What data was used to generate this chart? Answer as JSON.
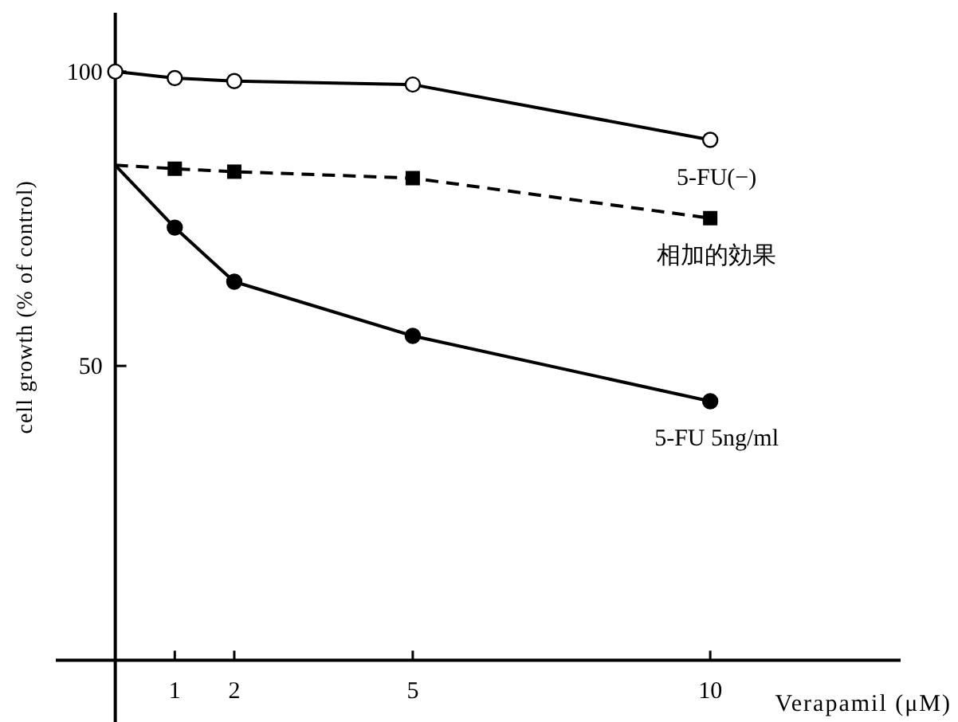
{
  "chart_data": {
    "type": "line",
    "xlabel": "Verapamil (μM)",
    "ylabel": "cell growth (% of control)",
    "xlim": [
      -1,
      13.2
    ],
    "ylim": [
      -10.5,
      110
    ],
    "xticks": [
      1,
      2,
      5,
      10
    ],
    "yticks": [
      50,
      100
    ],
    "grid": false,
    "legend": false,
    "series": [
      {
        "name": "5-FU(−)",
        "color": "#000000",
        "marker": "circle",
        "line_style": "solid",
        "x": [
          0,
          1,
          2,
          5,
          10
        ],
        "values": [
          100,
          98.9,
          98.4,
          97.8,
          88.4
        ]
      },
      {
        "name": "相加的効果",
        "color": "#000000",
        "marker": "square",
        "line_style": "dashed",
        "x": [
          0,
          1,
          2,
          5,
          10
        ],
        "values": [
          84.1,
          83.5,
          83,
          81.9,
          75.1
        ]
      },
      {
        "name": "5-FU 5ng/ml",
        "color": "#000000",
        "marker": "circle",
        "line_style": "solid",
        "x": [
          0,
          1,
          2,
          5,
          10
        ],
        "values": [
          84.1,
          73.5,
          64.3,
          55.1,
          44
        ]
      }
    ]
  }
}
